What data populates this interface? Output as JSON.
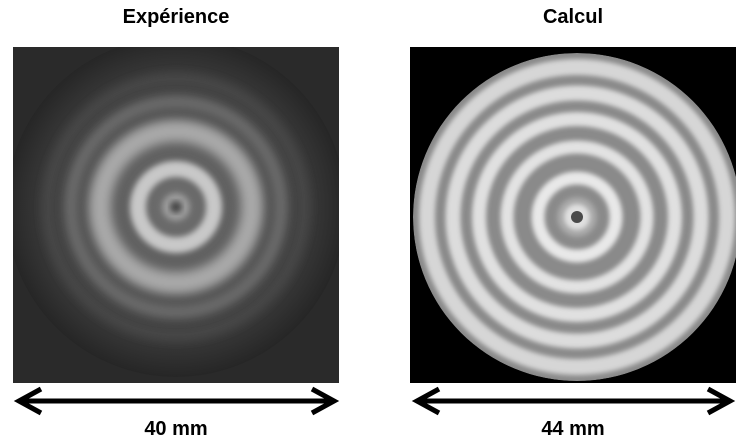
{
  "panels": [
    {
      "title": "Expérience",
      "scale_label": "40 mm",
      "image": "experimental-ring-pattern"
    },
    {
      "title": "Calcul",
      "scale_label": "44 mm",
      "image": "computed-ring-pattern"
    }
  ],
  "colors": {
    "text": "#000000",
    "experiment_background": "#2e2e2e",
    "calculation_background": "#000000",
    "ring_light": "#e0e0e0",
    "ring_mid": "#8c8c8c"
  }
}
